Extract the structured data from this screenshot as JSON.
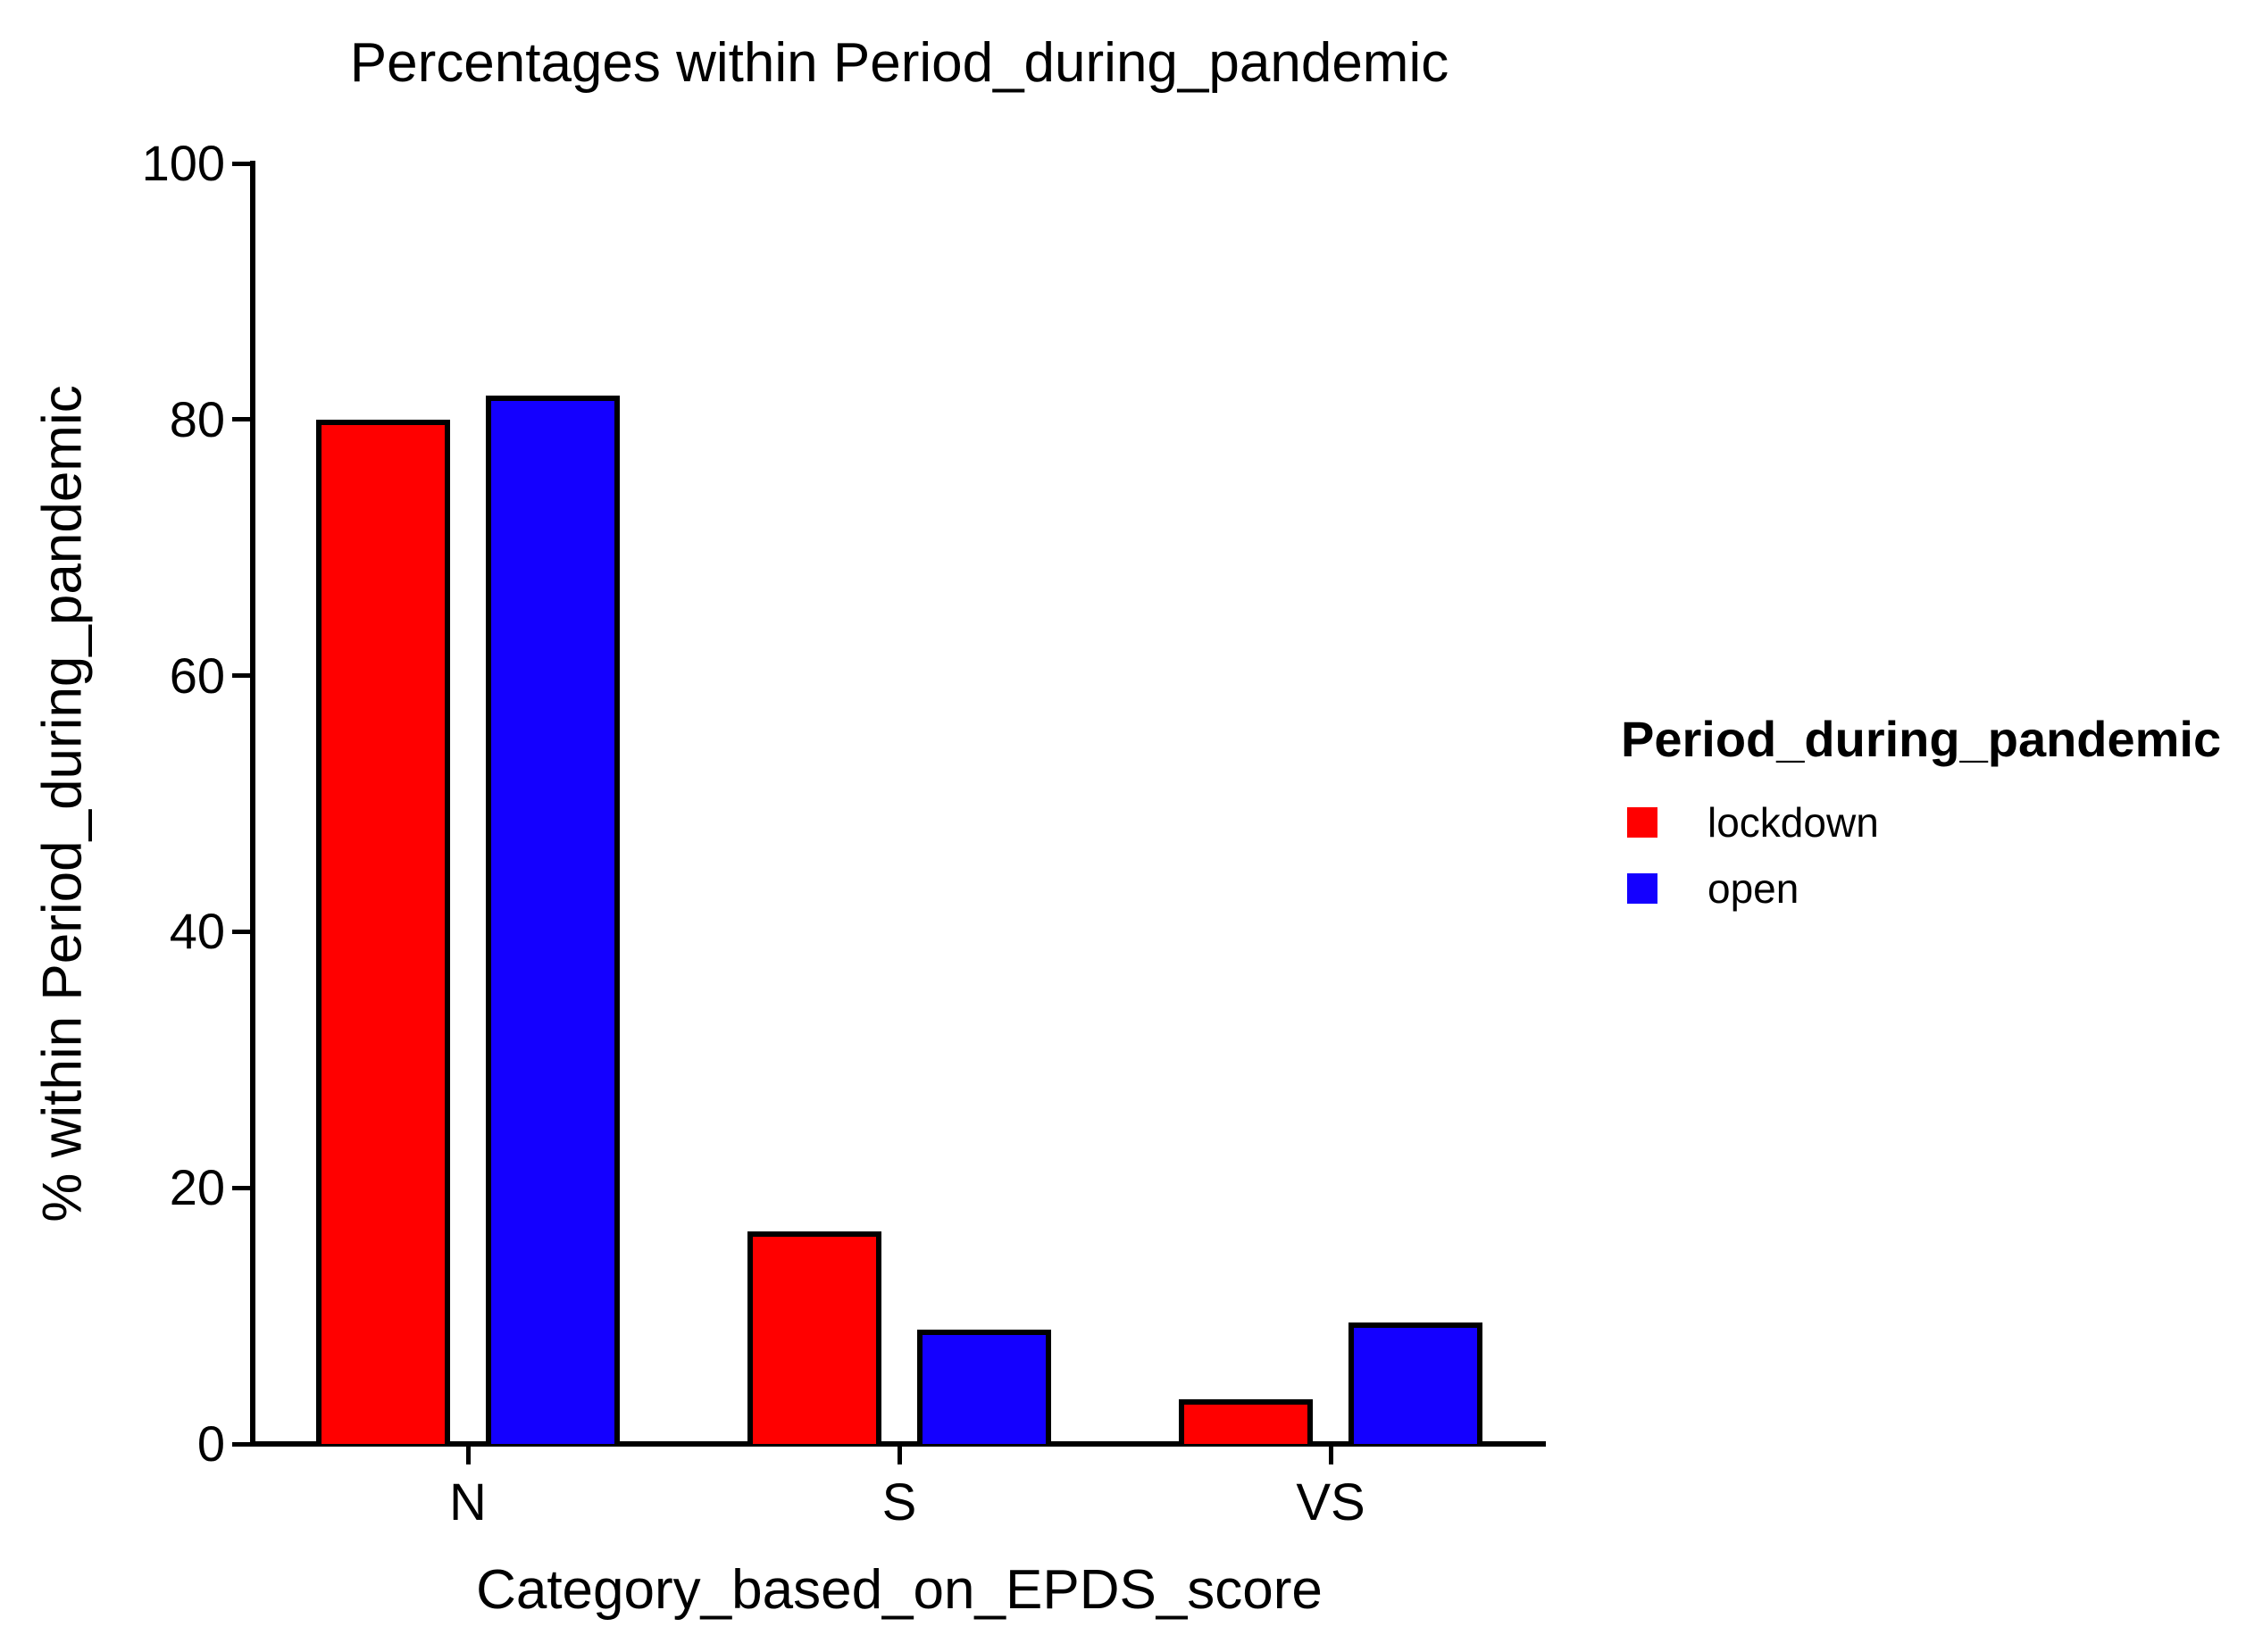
{
  "chart_data": {
    "type": "bar",
    "title": "Percentages within Period_during_pandemic",
    "xlabel": "Category_based_on_EPDS_score",
    "ylabel": "% within Period_during_pandemic",
    "categories": [
      "N",
      "S",
      "VS"
    ],
    "series": [
      {
        "name": "lockdown",
        "color": "#ff0000",
        "values": [
          80.0,
          16.6,
          3.5
        ]
      },
      {
        "name": "open",
        "color": "#1400ff",
        "values": [
          81.9,
          8.9,
          9.5
        ]
      }
    ],
    "ylim": [
      0,
      100
    ],
    "yticks": [
      0,
      20,
      40,
      60,
      80,
      100
    ],
    "grid": false,
    "legend_title": "Period_during_pandemic",
    "legend_position": "right",
    "bar_outline_color": "#000000",
    "background_color": "#ffffff"
  }
}
